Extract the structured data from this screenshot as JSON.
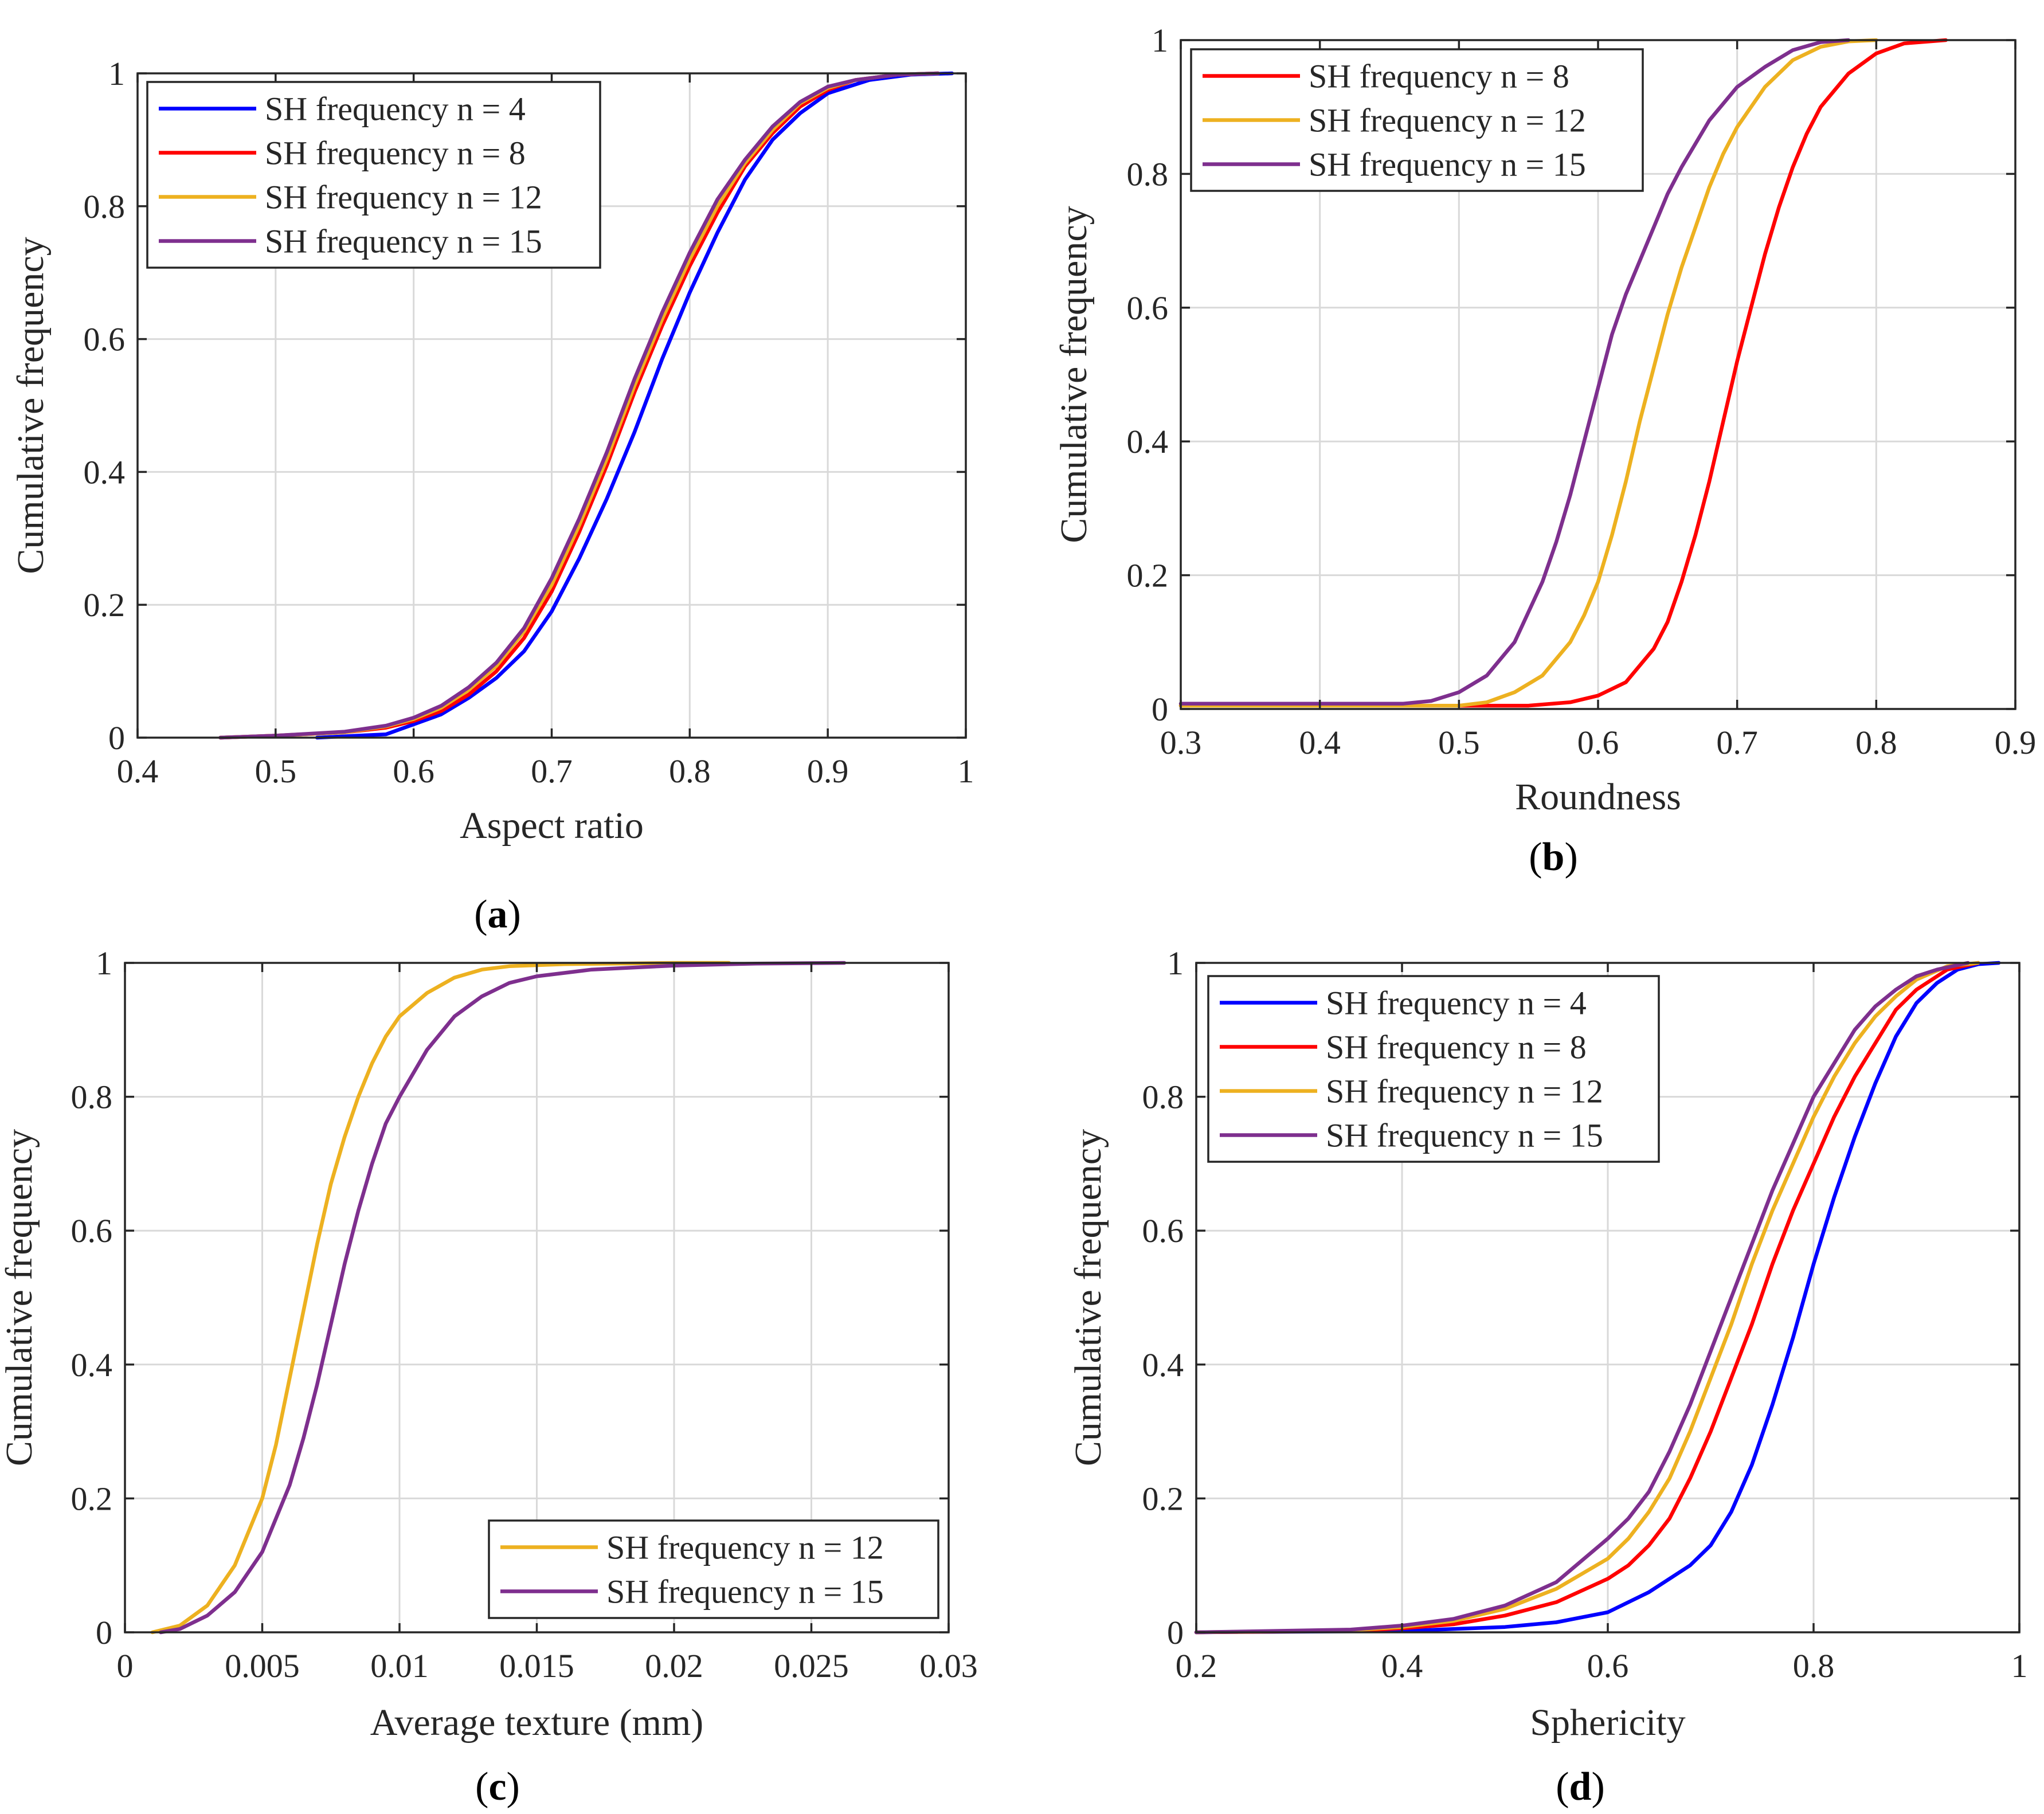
{
  "colors": {
    "n4": "#0000ff",
    "n8": "#ff0000",
    "n12": "#edb120",
    "n15": "#7e2f8e"
  },
  "chart_data": [
    {
      "id": "a",
      "type": "line",
      "caption": "a",
      "xlabel": "Aspect ratio",
      "ylabel": "Cumulative frequency",
      "xlim": [
        0.4,
        1
      ],
      "ylim": [
        0,
        1
      ],
      "xticks": [
        0.4,
        0.5,
        0.6,
        0.7,
        0.8,
        0.9,
        1
      ],
      "xtick_labels": [
        "0.4",
        "0.5",
        "0.6",
        "0.7",
        "0.8",
        "0.9",
        "1"
      ],
      "yticks": [
        0,
        0.2,
        0.4,
        0.6,
        0.8,
        1
      ],
      "ytick_labels": [
        "0",
        "0.2",
        "0.4",
        "0.6",
        "0.8",
        "1"
      ],
      "legend_position": "top-left",
      "series": [
        {
          "name": "SH frequency n = 4",
          "color_key": "n4",
          "x": [
            0.53,
            0.58,
            0.6,
            0.62,
            0.64,
            0.66,
            0.68,
            0.7,
            0.72,
            0.74,
            0.76,
            0.78,
            0.8,
            0.82,
            0.84,
            0.86,
            0.88,
            0.9,
            0.93,
            0.96,
            0.99
          ],
          "y": [
            0,
            0.005,
            0.02,
            0.035,
            0.06,
            0.09,
            0.13,
            0.19,
            0.27,
            0.36,
            0.46,
            0.57,
            0.67,
            0.76,
            0.84,
            0.9,
            0.94,
            0.97,
            0.99,
            0.998,
            1
          ]
        },
        {
          "name": "SH frequency n = 8",
          "color_key": "n8",
          "x": [
            0.46,
            0.5,
            0.55,
            0.58,
            0.6,
            0.62,
            0.64,
            0.66,
            0.68,
            0.7,
            0.72,
            0.74,
            0.76,
            0.78,
            0.8,
            0.82,
            0.84,
            0.86,
            0.88,
            0.9,
            0.92,
            0.95,
            0.98
          ],
          "y": [
            0,
            0.003,
            0.008,
            0.015,
            0.025,
            0.04,
            0.065,
            0.1,
            0.15,
            0.22,
            0.31,
            0.41,
            0.52,
            0.62,
            0.71,
            0.79,
            0.86,
            0.91,
            0.95,
            0.975,
            0.99,
            0.998,
            1
          ]
        },
        {
          "name": "SH frequency n = 12",
          "color_key": "n12",
          "x": [
            0.46,
            0.5,
            0.55,
            0.58,
            0.6,
            0.62,
            0.64,
            0.66,
            0.68,
            0.7,
            0.72,
            0.74,
            0.76,
            0.78,
            0.8,
            0.82,
            0.84,
            0.86,
            0.88,
            0.9,
            0.92,
            0.95,
            0.98
          ],
          "y": [
            0,
            0.003,
            0.008,
            0.017,
            0.028,
            0.045,
            0.072,
            0.108,
            0.16,
            0.23,
            0.32,
            0.42,
            0.53,
            0.63,
            0.72,
            0.8,
            0.865,
            0.915,
            0.955,
            0.978,
            0.99,
            0.998,
            1
          ]
        },
        {
          "name": "SH frequency n = 15",
          "color_key": "n15",
          "x": [
            0.46,
            0.5,
            0.55,
            0.58,
            0.6,
            0.62,
            0.64,
            0.66,
            0.68,
            0.7,
            0.72,
            0.74,
            0.76,
            0.78,
            0.8,
            0.82,
            0.84,
            0.86,
            0.88,
            0.9,
            0.92,
            0.95,
            0.98
          ],
          "y": [
            0,
            0.003,
            0.009,
            0.018,
            0.03,
            0.048,
            0.076,
            0.113,
            0.165,
            0.24,
            0.33,
            0.43,
            0.54,
            0.64,
            0.73,
            0.81,
            0.87,
            0.92,
            0.957,
            0.98,
            0.99,
            0.998,
            1
          ]
        }
      ]
    },
    {
      "id": "b",
      "type": "line",
      "caption": "b",
      "xlabel": "Roundness",
      "ylabel": "Cumulative frequency",
      "xlim": [
        0.3,
        0.9
      ],
      "ylim": [
        0,
        1
      ],
      "xticks": [
        0.3,
        0.4,
        0.5,
        0.6,
        0.7,
        0.8,
        0.9
      ],
      "xtick_labels": [
        "0.3",
        "0.4",
        "0.5",
        "0.6",
        "0.7",
        "0.8",
        "0.9"
      ],
      "yticks": [
        0,
        0.2,
        0.4,
        0.6,
        0.8,
        1
      ],
      "ytick_labels": [
        "0",
        "0.2",
        "0.4",
        "0.6",
        "0.8",
        "1"
      ],
      "legend_position": "top-left",
      "series": [
        {
          "name": "SH frequency n = 8",
          "color_key": "n8",
          "x": [
            0.3,
            0.55,
            0.58,
            0.6,
            0.62,
            0.64,
            0.65,
            0.66,
            0.67,
            0.68,
            0.69,
            0.7,
            0.71,
            0.72,
            0.73,
            0.74,
            0.75,
            0.76,
            0.78,
            0.8,
            0.82,
            0.85
          ],
          "y": [
            0.005,
            0.005,
            0.01,
            0.02,
            0.04,
            0.09,
            0.13,
            0.19,
            0.26,
            0.34,
            0.43,
            0.52,
            0.6,
            0.68,
            0.75,
            0.81,
            0.86,
            0.9,
            0.95,
            0.98,
            0.995,
            1
          ]
        },
        {
          "name": "SH frequency n = 12",
          "color_key": "n12",
          "x": [
            0.3,
            0.5,
            0.52,
            0.54,
            0.56,
            0.58,
            0.59,
            0.6,
            0.61,
            0.62,
            0.63,
            0.64,
            0.65,
            0.66,
            0.67,
            0.68,
            0.69,
            0.7,
            0.71,
            0.72,
            0.74,
            0.76,
            0.78,
            0.8
          ],
          "y": [
            0.005,
            0.005,
            0.01,
            0.025,
            0.05,
            0.1,
            0.14,
            0.19,
            0.26,
            0.34,
            0.43,
            0.51,
            0.59,
            0.66,
            0.72,
            0.78,
            0.83,
            0.87,
            0.9,
            0.93,
            0.97,
            0.99,
            0.998,
            1
          ]
        },
        {
          "name": "SH frequency n = 15",
          "color_key": "n15",
          "x": [
            0.3,
            0.46,
            0.48,
            0.5,
            0.52,
            0.54,
            0.56,
            0.57,
            0.58,
            0.59,
            0.6,
            0.61,
            0.62,
            0.63,
            0.64,
            0.65,
            0.66,
            0.68,
            0.7,
            0.72,
            0.74,
            0.76,
            0.78
          ],
          "y": [
            0.008,
            0.008,
            0.012,
            0.025,
            0.05,
            0.1,
            0.19,
            0.25,
            0.32,
            0.4,
            0.48,
            0.56,
            0.62,
            0.67,
            0.72,
            0.77,
            0.81,
            0.88,
            0.93,
            0.96,
            0.985,
            0.997,
            1
          ]
        }
      ]
    },
    {
      "id": "c",
      "type": "line",
      "caption": "c",
      "xlabel": "Average texture (mm)",
      "ylabel": "Cumulative frequency",
      "xlim": [
        0,
        0.03
      ],
      "ylim": [
        0,
        1
      ],
      "xticks": [
        0,
        0.005,
        0.01,
        0.015,
        0.02,
        0.025,
        0.03
      ],
      "xtick_labels": [
        "0",
        "0.005",
        "0.01",
        "0.015",
        "0.02",
        "0.025",
        "0.03"
      ],
      "yticks": [
        0,
        0.2,
        0.4,
        0.6,
        0.8,
        1
      ],
      "ytick_labels": [
        "0",
        "0.2",
        "0.4",
        "0.6",
        "0.8",
        "1"
      ],
      "legend_position": "bottom-right",
      "series": [
        {
          "name": "SH frequency n = 12",
          "color_key": "n12",
          "x": [
            0.001,
            0.002,
            0.003,
            0.004,
            0.005,
            0.0055,
            0.006,
            0.0065,
            0.007,
            0.0075,
            0.008,
            0.0085,
            0.009,
            0.0095,
            0.01,
            0.011,
            0.012,
            0.013,
            0.014,
            0.016,
            0.018,
            0.02,
            0.022
          ],
          "y": [
            0,
            0.01,
            0.04,
            0.1,
            0.2,
            0.28,
            0.38,
            0.48,
            0.58,
            0.67,
            0.74,
            0.8,
            0.85,
            0.89,
            0.92,
            0.955,
            0.978,
            0.99,
            0.995,
            0.998,
            0.999,
            1,
            1
          ]
        },
        {
          "name": "SH frequency n = 15",
          "color_key": "n15",
          "x": [
            0.0013,
            0.002,
            0.003,
            0.004,
            0.005,
            0.006,
            0.0065,
            0.007,
            0.0075,
            0.008,
            0.0085,
            0.009,
            0.0095,
            0.01,
            0.011,
            0.012,
            0.013,
            0.014,
            0.015,
            0.017,
            0.02,
            0.023,
            0.0262
          ],
          "y": [
            0,
            0.005,
            0.025,
            0.06,
            0.12,
            0.22,
            0.29,
            0.37,
            0.46,
            0.55,
            0.63,
            0.7,
            0.76,
            0.8,
            0.87,
            0.92,
            0.95,
            0.97,
            0.98,
            0.99,
            0.996,
            0.999,
            1
          ]
        }
      ]
    },
    {
      "id": "d",
      "type": "line",
      "caption": "d",
      "xlabel": "Sphericity",
      "ylabel": "Cumulative frequency",
      "xlim": [
        0.2,
        1
      ],
      "ylim": [
        0,
        1
      ],
      "xticks": [
        0.2,
        0.4,
        0.6,
        0.8,
        1
      ],
      "xtick_labels": [
        "0.2",
        "0.4",
        "0.6",
        "0.8",
        "1"
      ],
      "yticks": [
        0,
        0.2,
        0.4,
        0.6,
        0.8,
        1
      ],
      "ytick_labels": [
        "0",
        "0.2",
        "0.4",
        "0.6",
        "0.8",
        "1"
      ],
      "legend_position": "top-left",
      "series": [
        {
          "name": "SH frequency n = 4",
          "color_key": "n4",
          "x": [
            0.2,
            0.4,
            0.5,
            0.55,
            0.6,
            0.64,
            0.68,
            0.7,
            0.72,
            0.74,
            0.76,
            0.78,
            0.8,
            0.82,
            0.84,
            0.86,
            0.88,
            0.9,
            0.92,
            0.94,
            0.96,
            0.98
          ],
          "y": [
            0,
            0.002,
            0.008,
            0.015,
            0.03,
            0.06,
            0.1,
            0.13,
            0.18,
            0.25,
            0.34,
            0.44,
            0.55,
            0.65,
            0.74,
            0.82,
            0.89,
            0.94,
            0.97,
            0.99,
            0.998,
            1
          ]
        },
        {
          "name": "SH frequency n = 8",
          "color_key": "n8",
          "x": [
            0.2,
            0.35,
            0.4,
            0.45,
            0.5,
            0.55,
            0.6,
            0.62,
            0.64,
            0.66,
            0.68,
            0.7,
            0.72,
            0.74,
            0.76,
            0.78,
            0.8,
            0.82,
            0.84,
            0.86,
            0.88,
            0.9,
            0.93,
            0.96
          ],
          "y": [
            0,
            0.002,
            0.006,
            0.012,
            0.025,
            0.045,
            0.08,
            0.1,
            0.13,
            0.17,
            0.23,
            0.3,
            0.38,
            0.46,
            0.55,
            0.63,
            0.7,
            0.77,
            0.83,
            0.88,
            0.93,
            0.96,
            0.99,
            1
          ]
        },
        {
          "name": "SH frequency n = 12",
          "color_key": "n12",
          "x": [
            0.2,
            0.35,
            0.4,
            0.45,
            0.5,
            0.55,
            0.6,
            0.62,
            0.64,
            0.66,
            0.68,
            0.7,
            0.72,
            0.74,
            0.76,
            0.78,
            0.8,
            0.82,
            0.84,
            0.86,
            0.88,
            0.9,
            0.93,
            0.96
          ],
          "y": [
            0,
            0.003,
            0.008,
            0.017,
            0.035,
            0.065,
            0.11,
            0.14,
            0.18,
            0.23,
            0.3,
            0.38,
            0.46,
            0.55,
            0.63,
            0.7,
            0.77,
            0.83,
            0.88,
            0.92,
            0.95,
            0.975,
            0.995,
            1
          ]
        },
        {
          "name": "SH frequency n = 15",
          "color_key": "n15",
          "x": [
            0.2,
            0.35,
            0.4,
            0.45,
            0.5,
            0.55,
            0.6,
            0.62,
            0.64,
            0.66,
            0.68,
            0.7,
            0.72,
            0.74,
            0.76,
            0.78,
            0.8,
            0.82,
            0.84,
            0.86,
            0.88,
            0.9,
            0.92,
            0.95
          ],
          "y": [
            0,
            0.004,
            0.01,
            0.02,
            0.04,
            0.075,
            0.14,
            0.17,
            0.21,
            0.27,
            0.34,
            0.42,
            0.5,
            0.58,
            0.66,
            0.73,
            0.8,
            0.85,
            0.9,
            0.935,
            0.96,
            0.98,
            0.99,
            1
          ]
        }
      ]
    }
  ]
}
